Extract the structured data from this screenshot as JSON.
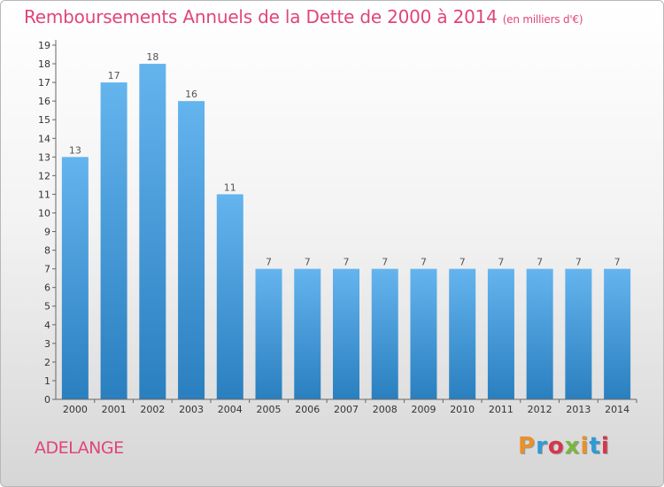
{
  "title": "Remboursements Annuels de la Dette de 2000 à 2014",
  "unit": "(en milliers d'€)",
  "location": "ADELANGE",
  "logo": {
    "text": "Proxiti",
    "colors": [
      "#e8912b",
      "#2e9bd6",
      "#d6364b",
      "#79b83d",
      "#e8912b",
      "#2e9bd6",
      "#d6364b"
    ]
  },
  "colors": {
    "bar_top": "#64b4ee",
    "bar_bottom": "#2a7fbf",
    "title": "#e0457a",
    "axis": "#666666"
  },
  "chart_data": {
    "type": "bar",
    "title": "Remboursements Annuels de la Dette de 2000 à 2014",
    "categories": [
      "2000",
      "2001",
      "2002",
      "2003",
      "2004",
      "2005",
      "2006",
      "2007",
      "2008",
      "2009",
      "2010",
      "2011",
      "2012",
      "2013",
      "2014"
    ],
    "values": [
      13,
      17,
      18,
      16,
      11,
      7,
      7,
      7,
      7,
      7,
      7,
      7,
      7,
      7,
      7
    ],
    "ylim": [
      0,
      19
    ],
    "yticks": [
      0,
      1,
      2,
      3,
      4,
      5,
      6,
      7,
      8,
      9,
      10,
      11,
      12,
      13,
      14,
      15,
      16,
      17,
      18,
      19
    ],
    "grid": false,
    "legend": "none"
  }
}
